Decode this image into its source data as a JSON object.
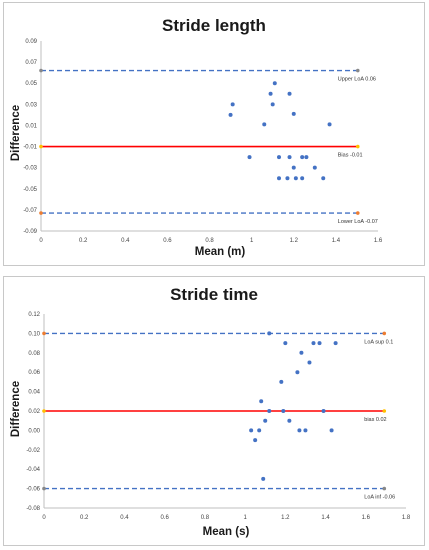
{
  "chart_data": [
    {
      "type": "scatter",
      "title": "Stride length",
      "xlabel": "Mean (m)",
      "ylabel": "Difference",
      "xlim": [
        0,
        1.6
      ],
      "ylim": [
        -0.09,
        0.09
      ],
      "xticks": [
        0,
        0.2,
        0.4,
        0.6,
        0.8,
        1,
        1.2,
        1.4,
        1.6
      ],
      "yticks": [
        -0.09,
        -0.07,
        -0.05,
        -0.03,
        -0.01,
        0.01,
        0.03,
        0.05,
        0.07,
        0.09
      ],
      "xtick_labels": [
        "0",
        "0.2",
        "0.4",
        "0.6",
        "0.8",
        "1",
        "1.2",
        "1.4",
        "1.6"
      ],
      "ytick_labels": [
        "-0.09",
        "-0.07",
        "-0.05",
        "-0.03",
        "-0.01",
        "0.01",
        "0.03",
        "0.05",
        "0.07",
        "0.09"
      ],
      "grid": false,
      "point_color": "#4472c4",
      "points": [
        {
          "x": 0.9,
          "y": 0.02
        },
        {
          "x": 0.91,
          "y": 0.03
        },
        {
          "x": 0.99,
          "y": -0.02
        },
        {
          "x": 1.06,
          "y": 0.011
        },
        {
          "x": 1.09,
          "y": 0.04
        },
        {
          "x": 1.1,
          "y": 0.03
        },
        {
          "x": 1.11,
          "y": 0.05
        },
        {
          "x": 1.13,
          "y": -0.02
        },
        {
          "x": 1.13,
          "y": -0.04
        },
        {
          "x": 1.17,
          "y": -0.04
        },
        {
          "x": 1.18,
          "y": 0.04
        },
        {
          "x": 1.18,
          "y": -0.02
        },
        {
          "x": 1.2,
          "y": 0.021
        },
        {
          "x": 1.2,
          "y": -0.03
        },
        {
          "x": 1.21,
          "y": -0.04
        },
        {
          "x": 1.24,
          "y": -0.02
        },
        {
          "x": 1.24,
          "y": -0.04
        },
        {
          "x": 1.26,
          "y": -0.02
        },
        {
          "x": 1.3,
          "y": -0.03
        },
        {
          "x": 1.34,
          "y": -0.04
        },
        {
          "x": 1.37,
          "y": 0.011
        }
      ],
      "reference_lines": [
        {
          "name": "upper-loa",
          "label": "Upper LoA 0.06",
          "y": 0.062,
          "style": "dashed",
          "color": "#4472c4",
          "end_marker_color": "#888888"
        },
        {
          "name": "bias",
          "label": "Bias -0.01",
          "y": -0.01,
          "style": "solid",
          "color": "#ff0000",
          "end_marker_color": "#ffc000"
        },
        {
          "name": "lower-loa",
          "label": "Lower LoA -0.07",
          "y": -0.073,
          "style": "dashed",
          "color": "#4472c4",
          "end_marker_color": "#ed7d31"
        }
      ]
    },
    {
      "type": "scatter",
      "title": "Stride time",
      "xlabel": "Mean (s)",
      "ylabel": "Difference",
      "xlim": [
        0,
        1.8
      ],
      "ylim": [
        -0.08,
        0.12
      ],
      "xticks": [
        0,
        0.2,
        0.4,
        0.6,
        0.8,
        1,
        1.2,
        1.4,
        1.6,
        1.8
      ],
      "yticks": [
        -0.08,
        -0.06,
        -0.04,
        -0.02,
        0,
        0.02,
        0.04,
        0.06,
        0.08,
        0.1,
        0.12
      ],
      "xtick_labels": [
        "0",
        "0.2",
        "0.4",
        "0.6",
        "0.8",
        "1",
        "1.2",
        "1.4",
        "1.6",
        "1.8"
      ],
      "ytick_labels": [
        "-0.08",
        "-0.06",
        "-0.04",
        "-0.02",
        "0.00",
        "0.02",
        "0.04",
        "0.06",
        "0.08",
        "0.10",
        "0.12"
      ],
      "grid": false,
      "point_color": "#4472c4",
      "points": [
        {
          "x": 1.03,
          "y": 0
        },
        {
          "x": 1.05,
          "y": -0.01
        },
        {
          "x": 1.07,
          "y": 0
        },
        {
          "x": 1.08,
          "y": 0.03
        },
        {
          "x": 1.09,
          "y": -0.05
        },
        {
          "x": 1.1,
          "y": 0.01
        },
        {
          "x": 1.12,
          "y": 0.02
        },
        {
          "x": 1.12,
          "y": 0.1
        },
        {
          "x": 1.18,
          "y": 0.05
        },
        {
          "x": 1.19,
          "y": 0.02
        },
        {
          "x": 1.2,
          "y": 0.09
        },
        {
          "x": 1.22,
          "y": 0.01
        },
        {
          "x": 1.26,
          "y": 0.06
        },
        {
          "x": 1.27,
          "y": 0
        },
        {
          "x": 1.28,
          "y": 0.08
        },
        {
          "x": 1.3,
          "y": 0
        },
        {
          "x": 1.32,
          "y": 0.07
        },
        {
          "x": 1.34,
          "y": 0.09
        },
        {
          "x": 1.37,
          "y": 0.09
        },
        {
          "x": 1.39,
          "y": 0.02
        },
        {
          "x": 1.43,
          "y": 0
        },
        {
          "x": 1.45,
          "y": 0.09
        }
      ],
      "reference_lines": [
        {
          "name": "loa-sup",
          "label": "LoA sup 0.1",
          "y": 0.1,
          "style": "dashed",
          "color": "#4472c4",
          "end_marker_color": "#ed7d31"
        },
        {
          "name": "bias",
          "label": "bias 0.02",
          "y": 0.02,
          "style": "solid",
          "color": "#ff0000",
          "end_marker_color": "#ffc000"
        },
        {
          "name": "loa-inf",
          "label": "LoA inf -0.06",
          "y": -0.06,
          "style": "dashed",
          "color": "#4472c4",
          "end_marker_color": "#888888"
        }
      ]
    }
  ]
}
